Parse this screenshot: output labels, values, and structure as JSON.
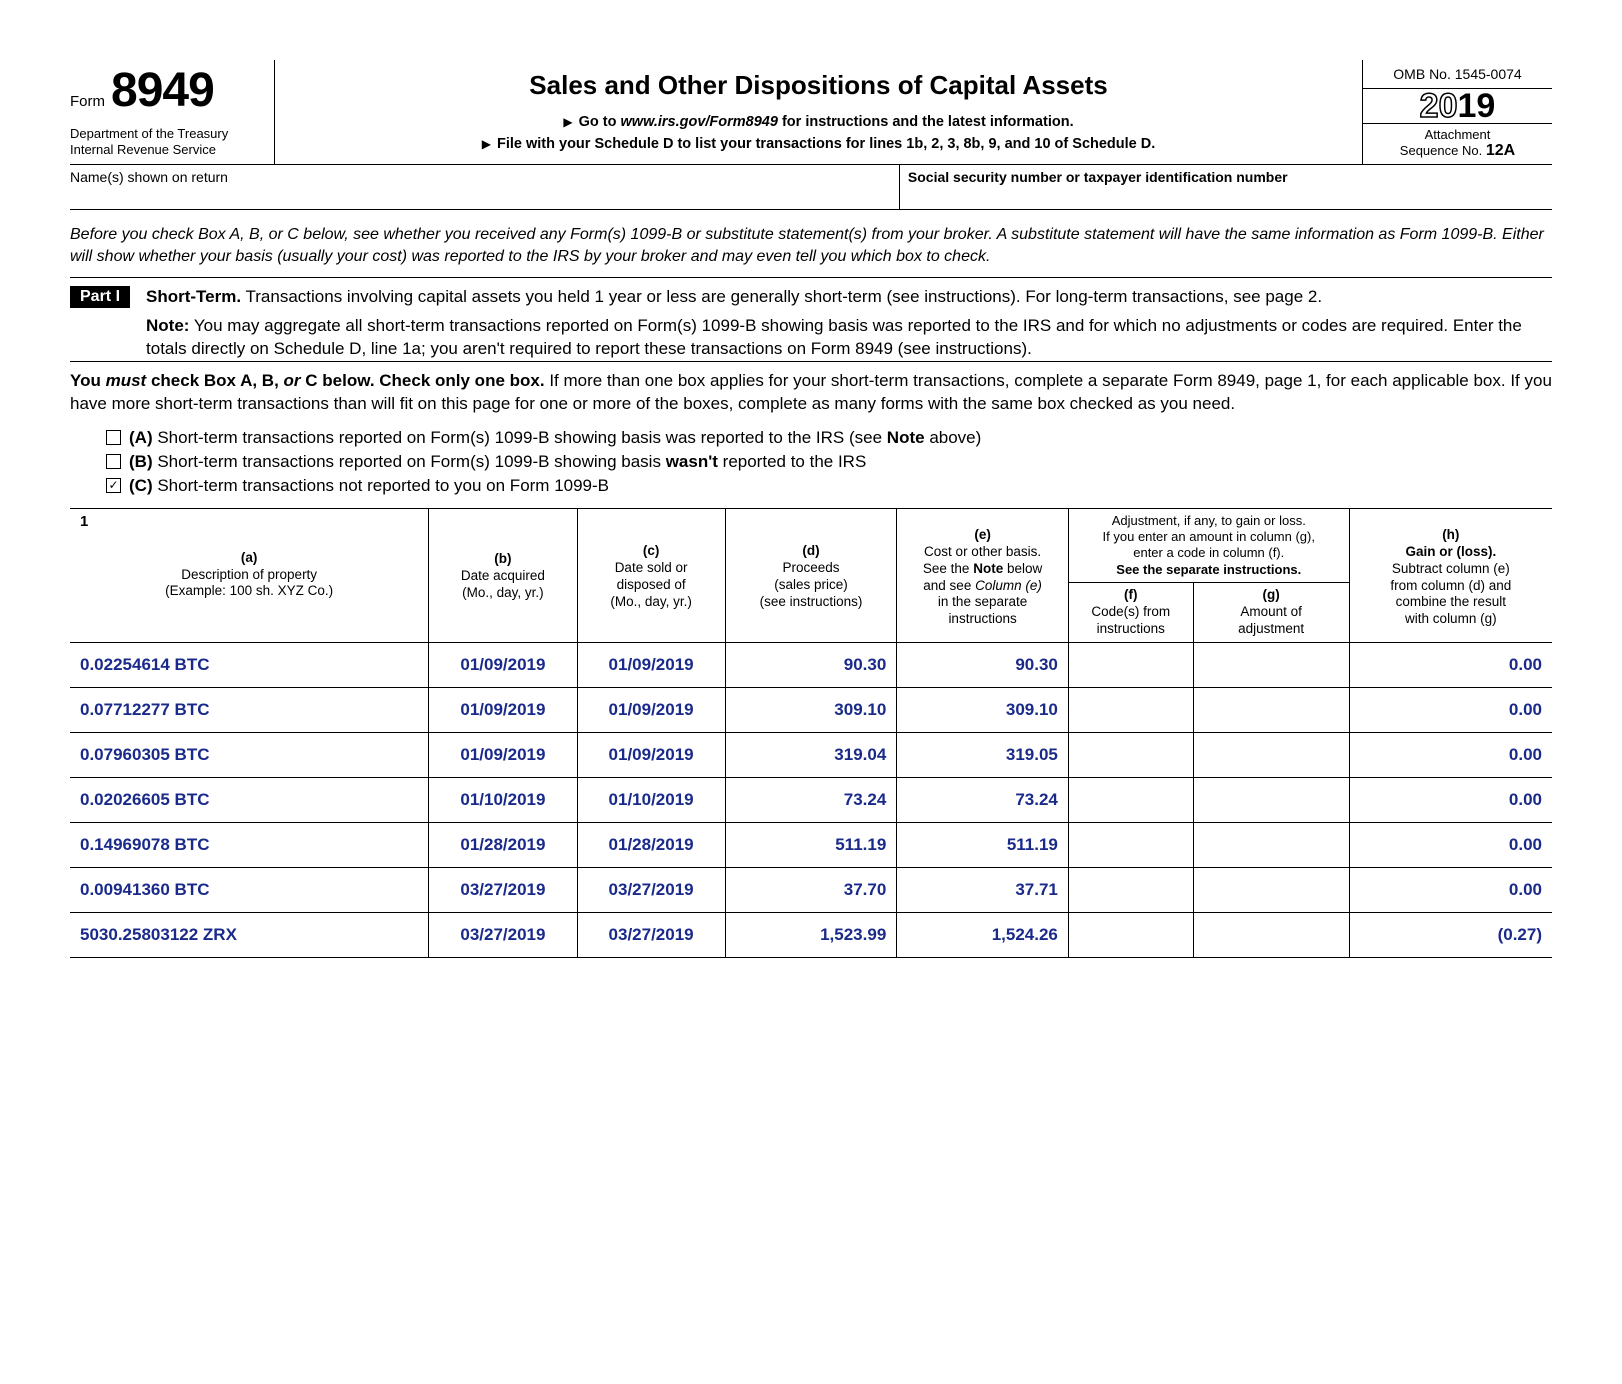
{
  "header": {
    "form_word": "Form",
    "form_number": "8949",
    "dept_line1": "Department of the Treasury",
    "dept_line2": "Internal Revenue Service",
    "title": "Sales and Other Dispositions of Capital Assets",
    "sub1_pre": "Go to",
    "sub1_link": "www.irs.gov/Form8949",
    "sub1_post": "for instructions and the latest information.",
    "sub2": "File with your Schedule D to list your transactions for lines 1b, 2, 3, 8b, 9, and 10 of Schedule D.",
    "omb": "OMB No. 1545-0074",
    "year_outline": "20",
    "year_bold": "19",
    "seq_label": "Attachment",
    "seq_line2_pre": "Sequence No.",
    "seq_no": "12A"
  },
  "idrow": {
    "name_label": "Name(s) shown on return",
    "ssn_label": "Social security number or taxpayer identification number"
  },
  "instr": "Before you check Box A, B, or C below, see whether you received any Form(s) 1099-B or substitute statement(s) from your broker. A substitute statement will have the same information as Form 1099-B. Either will show whether your basis (usually your cost) was reported to the IRS by your broker and may even tell you which box to check.",
  "part": {
    "badge": "Part I",
    "lead": "Short-Term.",
    "body": "Transactions involving capital assets you held 1 year or less are generally short-term (see instructions). For long-term transactions, see page 2.",
    "note_lead": "Note:",
    "note_body": "You may aggregate all short-term transactions reported on Form(s) 1099-B showing basis was reported to the IRS and for which no adjustments or codes are required. Enter the totals directly on Schedule D, line 1a; you aren't required to report these transactions on Form 8949 (see instructions)."
  },
  "must": {
    "lead1": "You",
    "lead2": "must",
    "lead3": "check Box A, B,",
    "lead4": "or",
    "lead5": "C below. Check only one box.",
    "rest": "If more than one box applies for your short-term transactions, complete a separate Form 8949, page 1, for each applicable box. If you have more short-term transactions than will fit on this page for one or more of the boxes, complete as many forms with the same box checked as you need."
  },
  "options": {
    "a": {
      "checked": false,
      "letter": "(A)",
      "text_pre": "Short-term transactions reported on Form(s) 1099-B showing basis was reported to the IRS (see",
      "text_bold": "Note",
      "text_post": "above)"
    },
    "b": {
      "checked": false,
      "letter": "(B)",
      "text_pre": "Short-term transactions reported on Form(s) 1099-B showing basis",
      "text_bold": "wasn't",
      "text_post": "reported to the IRS"
    },
    "c": {
      "checked": true,
      "letter": "(C)",
      "text": "Short-term transactions not reported to you on Form 1099-B"
    }
  },
  "table": {
    "one": "1",
    "headers": {
      "a": {
        "letter": "(a)",
        "l1": "Description of property",
        "l2": "(Example: 100 sh. XYZ Co.)"
      },
      "b": {
        "letter": "(b)",
        "l1": "Date acquired",
        "l2": "(Mo., day, yr.)"
      },
      "c": {
        "letter": "(c)",
        "l1": "Date sold or",
        "l2": "disposed of",
        "l3": "(Mo., day, yr.)"
      },
      "d": {
        "letter": "(d)",
        "l1": "Proceeds",
        "l2": "(sales price)",
        "l3": "(see instructions)"
      },
      "e": {
        "letter": "(e)",
        "l1": "Cost or other basis.",
        "l2_pre": "See the",
        "l2_b": "Note",
        "l2_post": "below",
        "l3_pre": "and see",
        "l3_i": "Column (e)",
        "l4": "in the separate",
        "l5": "instructions"
      },
      "adj": {
        "top1": "Adjustment, if any, to gain or loss.",
        "top2": "If you enter an amount in column (g),",
        "top3": "enter a code in column (f).",
        "top4": "See the separate instructions."
      },
      "f": {
        "letter": "(f)",
        "l1": "Code(s) from",
        "l2": "instructions"
      },
      "g": {
        "letter": "(g)",
        "l1": "Amount of",
        "l2": "adjustment"
      },
      "h": {
        "letter": "(h)",
        "l1b": "Gain or (loss).",
        "l2": "Subtract column (e)",
        "l3": "from column (d) and",
        "l4": "combine the result",
        "l5": "with column (g)"
      }
    },
    "rows": [
      {
        "a": "0.02254614 BTC",
        "b": "01/09/2019",
        "c": "01/09/2019",
        "d": "90.30",
        "e": "90.30",
        "f": "",
        "g": "",
        "h": "0.00"
      },
      {
        "a": "0.07712277 BTC",
        "b": "01/09/2019",
        "c": "01/09/2019",
        "d": "309.10",
        "e": "309.10",
        "f": "",
        "g": "",
        "h": "0.00"
      },
      {
        "a": "0.07960305 BTC",
        "b": "01/09/2019",
        "c": "01/09/2019",
        "d": "319.04",
        "e": "319.05",
        "f": "",
        "g": "",
        "h": "0.00"
      },
      {
        "a": "0.02026605 BTC",
        "b": "01/10/2019",
        "c": "01/10/2019",
        "d": "73.24",
        "e": "73.24",
        "f": "",
        "g": "",
        "h": "0.00"
      },
      {
        "a": "0.14969078 BTC",
        "b": "01/28/2019",
        "c": "01/28/2019",
        "d": "511.19",
        "e": "511.19",
        "f": "",
        "g": "",
        "h": "0.00"
      },
      {
        "a": "0.00941360 BTC",
        "b": "03/27/2019",
        "c": "03/27/2019",
        "d": "37.70",
        "e": "37.71",
        "f": "",
        "g": "",
        "h": "0.00"
      },
      {
        "a": "5030.25803122 ZRX",
        "b": "03/27/2019",
        "c": "03/27/2019",
        "d": "1,523.99",
        "e": "1,524.26",
        "f": "",
        "g": "",
        "h": "(0.27)"
      }
    ]
  },
  "colors": {
    "data": "#1a2a8a"
  }
}
